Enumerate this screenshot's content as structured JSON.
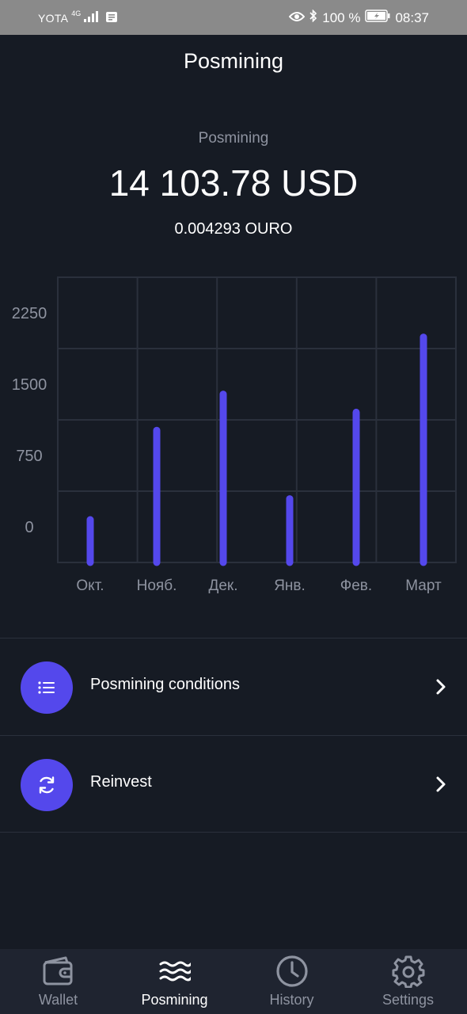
{
  "status_bar": {
    "carrier": "YOTA",
    "network": "4G",
    "battery": "100 %",
    "time": "08:37"
  },
  "header": {
    "title": "Posmining"
  },
  "balance": {
    "label": "Posmining",
    "usd": "14 103.78 USD",
    "ouro": "0.004293 OURO"
  },
  "chart_data": {
    "type": "bar",
    "categories": [
      "Окт.",
      "Нояб.",
      "Дек.",
      "Янв.",
      "Фев.",
      "Март"
    ],
    "values": [
      200,
      1140,
      1520,
      420,
      1330,
      2120
    ],
    "y_ticks": [
      0,
      750,
      1500,
      2250
    ],
    "ylim": [
      0,
      3000
    ],
    "grid": true,
    "bar_color": "#5448ec"
  },
  "menu": {
    "items": [
      {
        "label": "Posmining conditions",
        "icon": "list-icon"
      },
      {
        "label": "Reinvest",
        "icon": "refresh-icon"
      }
    ]
  },
  "tabbar": {
    "tabs": [
      {
        "label": "Wallet",
        "icon": "wallet-icon",
        "active": false
      },
      {
        "label": "Posmining",
        "icon": "waves-icon",
        "active": true
      },
      {
        "label": "History",
        "icon": "clock-icon",
        "active": false
      },
      {
        "label": "Settings",
        "icon": "gear-icon",
        "active": false
      }
    ]
  },
  "colors": {
    "background": "#161b24",
    "accent": "#5448ec",
    "muted_text": "#8e93a0",
    "tabbar": "#1f2430"
  }
}
